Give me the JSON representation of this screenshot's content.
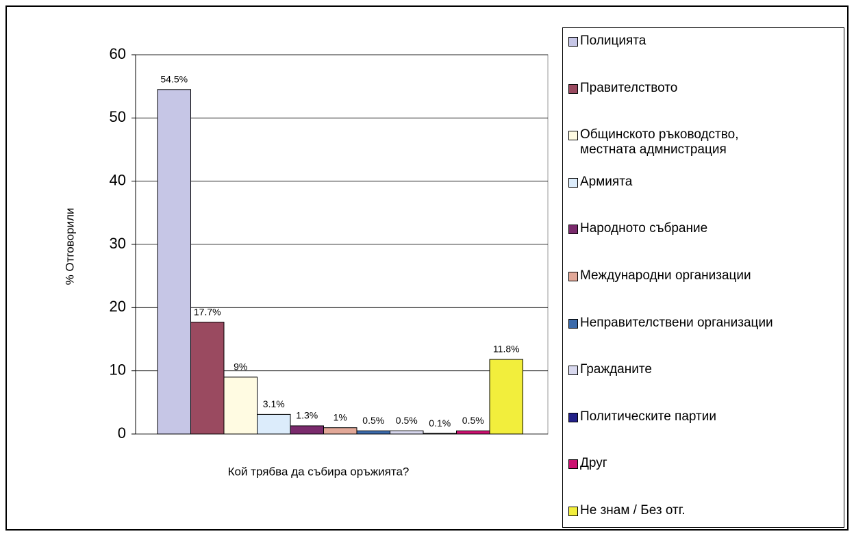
{
  "chart_data": {
    "type": "bar",
    "xlabel": "Кой трябва да събира оръжията?",
    "ylabel": "% Отговорили",
    "ylim": [
      0,
      60
    ],
    "yticks": [
      0,
      10,
      20,
      30,
      40,
      50,
      60
    ],
    "grid": true,
    "legend": "right",
    "series": [
      {
        "name": "Полицията",
        "color": "#c6c6e6",
        "values": [
          54.5
        ],
        "value_labels": [
          "54.5%"
        ]
      },
      {
        "name": "Правителството",
        "color": "#9a4a60",
        "values": [
          17.7
        ],
        "value_labels": [
          "17.7%"
        ]
      },
      {
        "name": "Общинското ръководство, местната адмнистрация",
        "color": "#fffbe2",
        "values": [
          9
        ],
        "value_labels": [
          "9%"
        ]
      },
      {
        "name": "Армията",
        "color": "#dcecfb",
        "values": [
          3.1
        ],
        "value_labels": [
          "3.1%"
        ]
      },
      {
        "name": "Народното събрание",
        "color": "#7a2a6c",
        "values": [
          1.3
        ],
        "value_labels": [
          "1.3%"
        ]
      },
      {
        "name": "Международни организации",
        "color": "#e2a898",
        "values": [
          1
        ],
        "value_labels": [
          "1%"
        ]
      },
      {
        "name": "Неправителствени организации",
        "color": "#3b6aaa",
        "values": [
          0.5
        ],
        "value_labels": [
          "0.5%"
        ]
      },
      {
        "name": "Гражданите",
        "color": "#d8d8ee",
        "values": [
          0.5
        ],
        "value_labels": [
          "0.5%"
        ]
      },
      {
        "name": "Политическите партии",
        "color": "#222088",
        "values": [
          0.1
        ],
        "value_labels": [
          "0.1%"
        ]
      },
      {
        "name": "Друг",
        "color": "#cc1070",
        "values": [
          0.5
        ],
        "value_labels": [
          "0.5%"
        ]
      },
      {
        "name": "Не знам / Без отг.",
        "color": "#f2ee3c",
        "values": [
          11.8
        ],
        "value_labels": [
          "11.8%"
        ]
      }
    ]
  }
}
